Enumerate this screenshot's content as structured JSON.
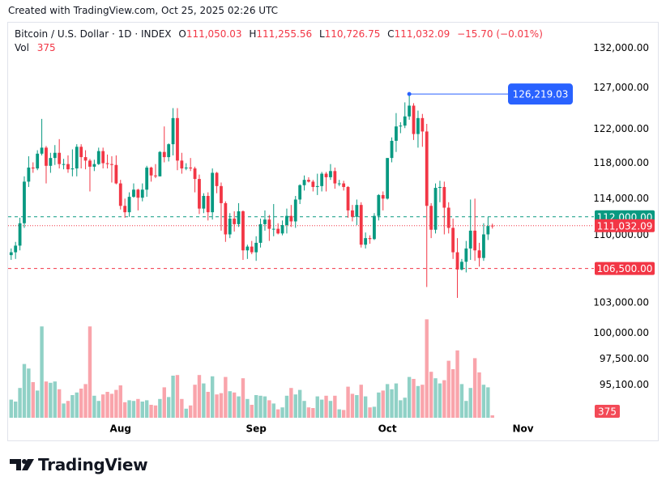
{
  "header": {
    "created": "Created with TradingView.com, Oct 25, 2025 02:26 UTC"
  },
  "legend": {
    "title": "Bitcoin / U.S. Dollar · 1D · INDEX",
    "o_key": "O",
    "open": "111,050.03",
    "h_key": "H",
    "high": "111,255.56",
    "l_key": "L",
    "low": "110,726.75",
    "c_key": "C",
    "close": "111,032.09",
    "change": "−15.70 (−0.01%)",
    "vol_key": "Vol"
  },
  "footer": {
    "brand": "TradingView"
  },
  "chart_data": {
    "type": "candlestick",
    "log_scale": true,
    "up_color": "#089981",
    "down_color": "#f23645",
    "xlim": [
      -0.7,
      133.2
    ],
    "xticks": [
      {
        "value": 25,
        "label": "Aug"
      },
      {
        "value": 56,
        "label": "Sep"
      },
      {
        "value": 86,
        "label": "Oct"
      },
      {
        "value": 117,
        "label": "Nov"
      }
    ],
    "ylim": [
      92100,
      135300
    ],
    "yticks": [
      {
        "value": 132000,
        "label": "132,000.00"
      },
      {
        "value": 127000,
        "label": "127,000.00"
      },
      {
        "value": 122000,
        "label": "122,000.00"
      },
      {
        "value": 118000,
        "label": "118,000.00"
      },
      {
        "value": 114000,
        "label": "114,000.00"
      },
      {
        "value": 110000,
        "label": "110,000.00"
      },
      {
        "value": 103000,
        "label": "103,000.00"
      },
      {
        "value": 100000,
        "label": "100,000.00"
      },
      {
        "value": 97500,
        "label": "97,500.00"
      },
      {
        "value": 95100,
        "label": "95,100.00"
      }
    ],
    "volume_lim": [
      0,
      16000
    ],
    "levels": [
      {
        "value": 112000,
        "label": "112,000.00",
        "color": "#089981",
        "style": "dashed"
      },
      {
        "value": 111032.09,
        "label": "111,032.09",
        "color": "#f23645",
        "style": "dotted"
      },
      {
        "value": 106500,
        "label": "106,500.00",
        "color": "#f23645",
        "style": "dashed"
      }
    ],
    "callout": {
      "index": 91,
      "value": 126219.03,
      "label": "126,219.03",
      "color": "#2962ff"
    },
    "open": [
      107900,
      108200,
      108900,
      111300,
      115900,
      117500,
      117400,
      119100,
      119800,
      117700,
      118600,
      119200,
      117900,
      117900,
      117300,
      117400,
      119900,
      118700,
      118300,
      117600,
      117900,
      119400,
      118000,
      117900,
      117800,
      115700,
      113200,
      112500,
      114200,
      115000,
      114100,
      115000,
      117500,
      116600,
      116500,
      119300,
      118700,
      120200,
      123300,
      118300,
      117400,
      117500,
      117400,
      116200,
      112900,
      114300,
      112500,
      116900,
      115400,
      113500,
      110100,
      111800,
      111200,
      112600,
      108400,
      108800,
      108200,
      109200,
      111200,
      111700,
      110700,
      110700,
      110200,
      111100,
      112100,
      111500,
      113900,
      115500,
      116100,
      115900,
      115300,
      115400,
      116800,
      116400,
      117100,
      115700,
      115700,
      115300,
      112700,
      112000,
      113300,
      109000,
      109700,
      109600,
      112100,
      114400,
      114000,
      118600,
      120600,
      122300,
      122400,
      123500,
      124800,
      121400,
      123300,
      121700,
      113200,
      110600,
      115200,
      115300,
      113000,
      110800,
      108200,
      106400,
      107200,
      108600,
      110500,
      108400,
      107600,
      110100,
      111050.03
    ],
    "high": [
      108600,
      109300,
      111900,
      116500,
      118800,
      118100,
      119500,
      123200,
      120000,
      119200,
      120100,
      120800,
      118500,
      118900,
      119600,
      120200,
      120200,
      119500,
      118500,
      118400,
      119800,
      119800,
      119000,
      118800,
      118900,
      116100,
      114000,
      114700,
      115700,
      115100,
      115700,
      117700,
      117600,
      117900,
      119400,
      122300,
      120300,
      124500,
      124500,
      119200,
      118000,
      118600,
      117600,
      116700,
      114600,
      114700,
      117400,
      117000,
      115800,
      113700,
      112400,
      112600,
      113500,
      112700,
      109000,
      109400,
      109900,
      111800,
      112700,
      112200,
      113400,
      111300,
      111600,
      112900,
      113300,
      114300,
      115600,
      116600,
      116400,
      116100,
      116800,
      117000,
      117000,
      117900,
      117500,
      116100,
      116000,
      115400,
      113300,
      113900,
      113600,
      110300,
      110000,
      112400,
      114500,
      114800,
      118600,
      121000,
      123900,
      122800,
      125200,
      126219.03,
      125100,
      124200,
      123800,
      122600,
      113500,
      115700,
      116000,
      115900,
      113600,
      111800,
      109700,
      107500,
      109400,
      113900,
      114000,
      109200,
      111300,
      112000,
      111255.56
    ],
    "low": [
      107400,
      107500,
      108400,
      110800,
      115300,
      116900,
      117200,
      118900,
      115700,
      116900,
      117800,
      117400,
      117300,
      116900,
      116500,
      116500,
      117400,
      117300,
      114800,
      117100,
      117800,
      117400,
      117400,
      115800,
      115600,
      112800,
      111900,
      112000,
      114100,
      112700,
      113700,
      114200,
      115900,
      116300,
      116500,
      118100,
      118200,
      118900,
      117200,
      116800,
      117200,
      117100,
      114700,
      112300,
      112400,
      111600,
      111700,
      114600,
      110500,
      109300,
      109700,
      110400,
      110900,
      107400,
      107500,
      108000,
      107300,
      108700,
      110500,
      109400,
      109900,
      110100,
      110000,
      110200,
      110900,
      110800,
      113400,
      114900,
      115800,
      114800,
      114400,
      114800,
      114800,
      116100,
      115100,
      115400,
      114900,
      111900,
      111500,
      111100,
      108700,
      108600,
      109100,
      109500,
      111600,
      112700,
      113900,
      118100,
      119300,
      121500,
      122100,
      123100,
      120700,
      119800,
      119900,
      104600,
      109700,
      110200,
      113600,
      110100,
      110200,
      107500,
      103500,
      106300,
      106100,
      107400,
      107300,
      106700,
      107300,
      109500,
      110726.75
    ],
    "close": [
      108200,
      108900,
      111300,
      115900,
      117500,
      117400,
      119100,
      119800,
      117700,
      118600,
      119200,
      117900,
      117900,
      117300,
      117400,
      119900,
      118700,
      118300,
      117600,
      117900,
      119400,
      118000,
      117900,
      117800,
      115700,
      113200,
      112500,
      114200,
      115000,
      114100,
      115000,
      117500,
      116600,
      116500,
      119300,
      118700,
      120200,
      123300,
      118300,
      117400,
      117500,
      117400,
      116200,
      112900,
      114300,
      112500,
      116900,
      115400,
      113500,
      110100,
      111800,
      111200,
      112600,
      108400,
      108800,
      108200,
      109200,
      111200,
      111700,
      110700,
      110700,
      110200,
      111100,
      112100,
      111500,
      113900,
      115500,
      116100,
      115900,
      115300,
      115400,
      116800,
      116400,
      117100,
      115700,
      115700,
      115300,
      112700,
      112000,
      113300,
      109000,
      109700,
      109600,
      112100,
      114400,
      114000,
      118600,
      120600,
      122300,
      122400,
      123500,
      124800,
      121400,
      123300,
      121700,
      113200,
      110600,
      115200,
      115300,
      113000,
      110800,
      108200,
      106400,
      107200,
      108600,
      110500,
      108400,
      107600,
      110100,
      111000,
      111032.09
    ],
    "volume": [
      2800,
      2500,
      4600,
      8300,
      7600,
      5500,
      4200,
      14100,
      5600,
      5400,
      5600,
      4400,
      2200,
      2600,
      3500,
      3900,
      4500,
      5200,
      14100,
      3400,
      2600,
      3600,
      4000,
      3700,
      4300,
      5000,
      2400,
      2700,
      2600,
      2900,
      2500,
      2700,
      2000,
      1900,
      2900,
      4700,
      3200,
      6500,
      6600,
      2900,
      1400,
      1900,
      5100,
      6600,
      5300,
      4000,
      6400,
      3600,
      3800,
      6300,
      4100,
      3900,
      3300,
      6100,
      2900,
      2000,
      3500,
      3400,
      3300,
      2700,
      2200,
      1300,
      1600,
      3400,
      4600,
      3600,
      4300,
      2600,
      1600,
      1500,
      3300,
      2800,
      3400,
      2600,
      3400,
      1300,
      1200,
      4800,
      3700,
      3500,
      5100,
      3300,
      1600,
      1700,
      3900,
      4200,
      5200,
      4400,
      5300,
      2700,
      3100,
      6300,
      6000,
      4900,
      5100,
      15200,
      7100,
      6100,
      5300,
      5800,
      8800,
      7500,
      10400,
      5200,
      2600,
      4600,
      9200,
      7000,
      5100,
      4700,
      375
    ]
  }
}
